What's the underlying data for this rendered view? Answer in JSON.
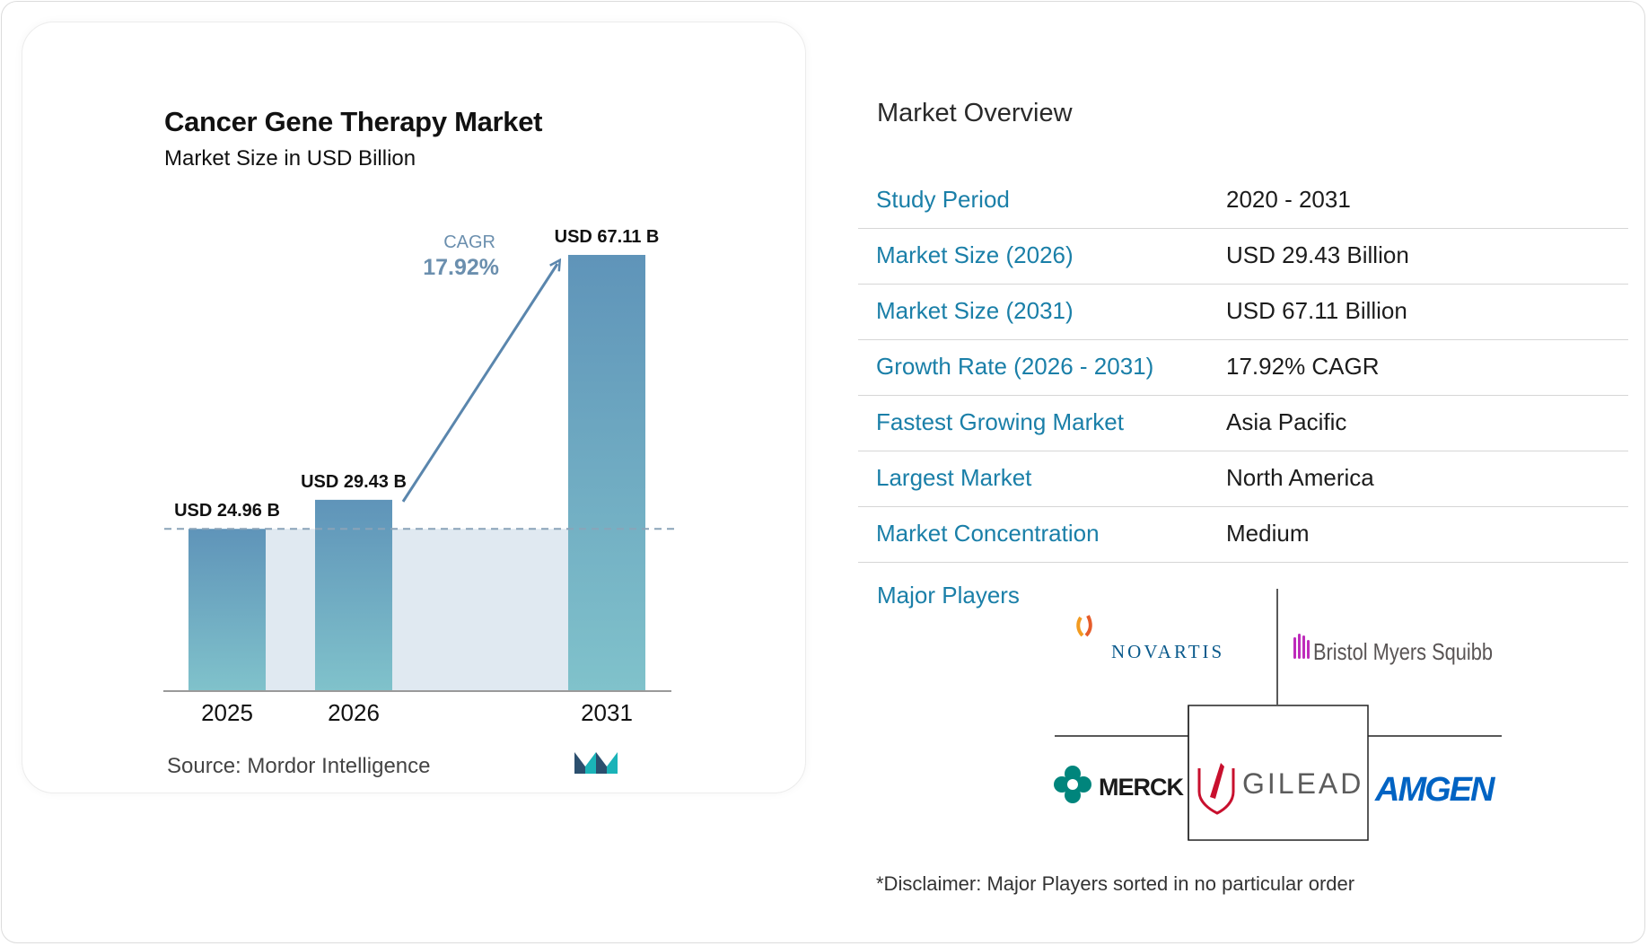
{
  "chart_data": {
    "type": "bar",
    "title": "Cancer Gene Therapy Market",
    "subtitle": "Market Size in USD Billion",
    "categories": [
      "2025",
      "2026",
      "2031"
    ],
    "values": [
      24.96,
      29.43,
      67.11
    ],
    "value_labels": [
      "USD 24.96 B",
      "USD 29.43 B",
      "USD 67.11 B"
    ],
    "ylim": [
      0,
      67.11
    ],
    "cagr_label": "CAGR",
    "cagr_value": "17.92%",
    "colors": {
      "bar_top": "#5f94b9",
      "bar_bottom": "#80c2cb",
      "band": "#e0e9f1",
      "arrow": "#5a86ad"
    }
  },
  "source_text": "Source:  Mordor Intelligence",
  "overview": {
    "title": "Market Overview",
    "rows": [
      {
        "label": "Study Period",
        "value": "2020 - 2031"
      },
      {
        "label": "Market Size (2026)",
        "value": "USD 29.43 Billion"
      },
      {
        "label": "Market Size (2031)",
        "value": "USD 67.11 Billion"
      },
      {
        "label": "Growth Rate (2026 - 2031)",
        "value": "17.92% CAGR"
      },
      {
        "label": "Fastest Growing Market",
        "value": "Asia Pacific"
      },
      {
        "label": "Largest Market",
        "value": "North America"
      },
      {
        "label": "Market Concentration",
        "value": "Medium"
      }
    ]
  },
  "players": {
    "label": "Major Players",
    "logos": [
      "NOVARTIS",
      "Bristol Myers Squibb",
      "MERCK",
      "GILEAD",
      "AMGEN"
    ]
  },
  "disclaimer": "*Disclaimer: Major Players sorted in no particular order",
  "colors": {
    "accent": "#1a7fa8"
  }
}
